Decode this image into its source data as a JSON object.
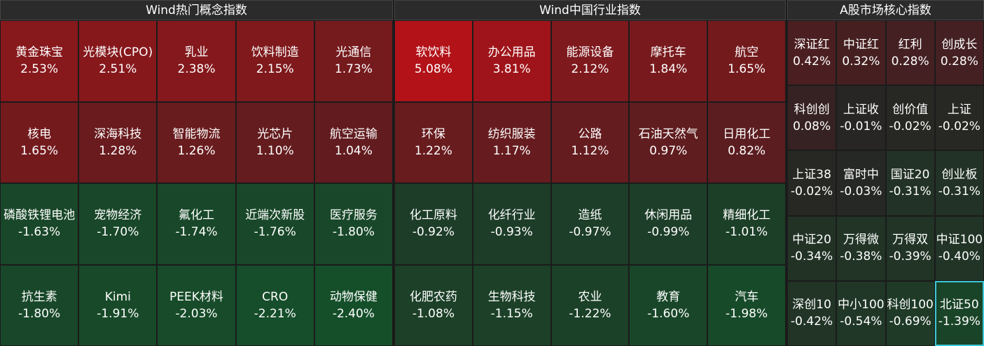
{
  "panels": [
    {
      "title": "Wind热门概念指数",
      "columns": 5,
      "tiles": [
        {
          "label": "黄金珠宝",
          "value": "2.53%"
        },
        {
          "label": "光模块(CPO)",
          "value": "2.51%"
        },
        {
          "label": "乳业",
          "value": "2.38%"
        },
        {
          "label": "饮料制造",
          "value": "2.15%"
        },
        {
          "label": "光通信",
          "value": "1.73%"
        },
        {
          "label": "核电",
          "value": "1.65%"
        },
        {
          "label": "深海科技",
          "value": "1.28%"
        },
        {
          "label": "智能物流",
          "value": "1.26%"
        },
        {
          "label": "光芯片",
          "value": "1.10%"
        },
        {
          "label": "航空运输",
          "value": "1.04%"
        },
        {
          "label": "磷酸铁锂电池",
          "value": "-1.63%"
        },
        {
          "label": "宠物经济",
          "value": "-1.70%"
        },
        {
          "label": "氟化工",
          "value": "-1.74%"
        },
        {
          "label": "近端次新股",
          "value": "-1.76%"
        },
        {
          "label": "医疗服务",
          "value": "-1.80%"
        },
        {
          "label": "抗生素",
          "value": "-1.80%"
        },
        {
          "label": "Kimi",
          "value": "-1.91%"
        },
        {
          "label": "PEEK材料",
          "value": "-2.03%"
        },
        {
          "label": "CRO",
          "value": "-2.21%"
        },
        {
          "label": "动物保健",
          "value": "-2.40%"
        }
      ]
    },
    {
      "title": "Wind中国行业指数",
      "columns": 5,
      "tiles": [
        {
          "label": "软饮料",
          "value": "5.08%"
        },
        {
          "label": "办公用品",
          "value": "3.81%"
        },
        {
          "label": "能源设备",
          "value": "2.12%"
        },
        {
          "label": "摩托车",
          "value": "1.84%"
        },
        {
          "label": "航空",
          "value": "1.65%"
        },
        {
          "label": "环保",
          "value": "1.22%"
        },
        {
          "label": "纺织服装",
          "value": "1.17%"
        },
        {
          "label": "公路",
          "value": "1.12%"
        },
        {
          "label": "石油天然气",
          "value": "0.97%"
        },
        {
          "label": "日用化工",
          "value": "0.82%"
        },
        {
          "label": "化工原料",
          "value": "-0.92%"
        },
        {
          "label": "化纤行业",
          "value": "-0.93%"
        },
        {
          "label": "造纸",
          "value": "-0.97%"
        },
        {
          "label": "休闲用品",
          "value": "-0.99%"
        },
        {
          "label": "精细化工",
          "value": "-1.01%"
        },
        {
          "label": "化肥农药",
          "value": "-1.08%"
        },
        {
          "label": "生物科技",
          "value": "-1.15%"
        },
        {
          "label": "农业",
          "value": "-1.22%"
        },
        {
          "label": "教育",
          "value": "-1.60%"
        },
        {
          "label": "汽车",
          "value": "-1.98%"
        }
      ]
    },
    {
      "title": "A股市场核心指数",
      "columns": 4,
      "tiles": [
        {
          "label": "深证红",
          "value": "0.42%"
        },
        {
          "label": "中证红",
          "value": "0.32%"
        },
        {
          "label": "红利",
          "value": "0.28%"
        },
        {
          "label": "创成长",
          "value": "0.28%"
        },
        {
          "label": "科创创",
          "value": "0.08%"
        },
        {
          "label": "上证收",
          "value": "-0.01%"
        },
        {
          "label": "创价值",
          "value": "-0.02%"
        },
        {
          "label": "上证",
          "value": "-0.02%"
        },
        {
          "label": "上证38",
          "value": "-0.02%"
        },
        {
          "label": "富时中",
          "value": "-0.03%"
        },
        {
          "label": "国证20",
          "value": "-0.31%"
        },
        {
          "label": "创业板",
          "value": "-0.31%"
        },
        {
          "label": "中证20",
          "value": "-0.34%"
        },
        {
          "label": "万得微",
          "value": "-0.38%"
        },
        {
          "label": "万得双",
          "value": "-0.39%"
        },
        {
          "label": "中证100",
          "value": "-0.40%"
        },
        {
          "label": "深创10",
          "value": "-0.42%"
        },
        {
          "label": "中小100",
          "value": "-0.54%"
        },
        {
          "label": "科创100",
          "value": "-0.69%"
        },
        {
          "label": "北证50",
          "value": "-1.39%"
        }
      ]
    }
  ]
}
